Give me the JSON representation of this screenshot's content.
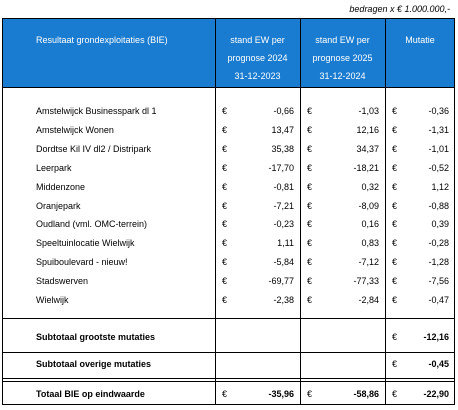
{
  "note": "bedragen x € 1.000.000,-",
  "currency": "€",
  "header": {
    "label": "Resultaat grondexploitaties (BIE)",
    "columns": [
      [
        "stand EW per",
        "prognose 2024",
        "31-12-2023"
      ],
      [
        "stand EW per",
        "prognose 2025",
        "31-12-2024"
      ],
      [
        "Mutatie"
      ]
    ]
  },
  "rows": [
    {
      "name": "Amstelwijck Businesspark dl 1",
      "values": [
        "-0,66",
        "-1,03",
        "-0,36"
      ]
    },
    {
      "name": "Amstelwijck Wonen",
      "values": [
        "13,47",
        "12,16",
        "-1,31"
      ]
    },
    {
      "name": "Dordtse Kil IV dl2 / Distripark",
      "values": [
        "35,38",
        "34,37",
        "-1,01"
      ]
    },
    {
      "name": "Leerpark",
      "values": [
        "-17,70",
        "-18,21",
        "-0,52"
      ]
    },
    {
      "name": "Middenzone",
      "values": [
        "-0,81",
        "0,32",
        "1,12"
      ]
    },
    {
      "name": "Oranjepark",
      "values": [
        "-7,21",
        "-8,09",
        "-0,88"
      ]
    },
    {
      "name": "Oudland (vml. OMC-terrein)",
      "values": [
        "-0,23",
        "0,16",
        "0,39"
      ]
    },
    {
      "name": "Speeltuinlocatie Wielwijk",
      "values": [
        "1,11",
        "0,83",
        "-0,28"
      ]
    },
    {
      "name": "Spuiboulevard - nieuw!",
      "values": [
        "-5,84",
        "-7,12",
        "-1,28"
      ]
    },
    {
      "name": "Stadswerven",
      "values": [
        "-69,77",
        "-77,33",
        "-7,56"
      ]
    },
    {
      "name": "Wielwijk",
      "values": [
        "-2,38",
        "-2,84",
        "-0,47"
      ]
    }
  ],
  "subtotals": [
    {
      "name": "Subtotaal grootste mutaties",
      "value": "-12,16"
    },
    {
      "name": "Subtotaal overige mutaties",
      "value": "-0,45"
    }
  ],
  "total": {
    "name": "Totaal BIE op eindwaarde",
    "values": [
      "-35,96",
      "-58,86",
      "-22,90"
    ]
  }
}
